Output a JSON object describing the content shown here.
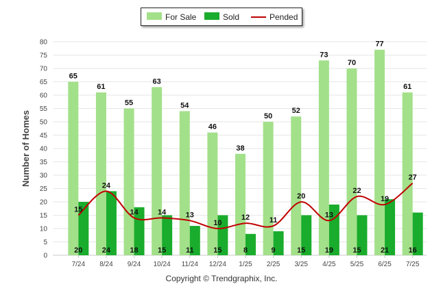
{
  "chart_data": {
    "type": "bar",
    "categories": [
      "7/24",
      "8/24",
      "9/24",
      "10/24",
      "11/24",
      "12/24",
      "1/25",
      "2/25",
      "3/25",
      "4/25",
      "5/25",
      "6/25",
      "7/25"
    ],
    "series": [
      {
        "name": "For Sale",
        "type": "bar",
        "color": "#a3e08a",
        "values": [
          65,
          61,
          55,
          63,
          54,
          46,
          38,
          50,
          52,
          73,
          70,
          77,
          61
        ]
      },
      {
        "name": "Sold",
        "type": "bar",
        "color": "#1aac2c",
        "values": [
          20,
          24,
          18,
          15,
          11,
          15,
          8,
          9,
          15,
          19,
          15,
          21,
          16
        ]
      },
      {
        "name": "Pended",
        "type": "line",
        "color": "#c00000",
        "values": [
          15,
          24,
          14,
          14,
          13,
          10,
          12,
          11,
          20,
          13,
          22,
          19,
          27
        ]
      }
    ],
    "xlabel": "",
    "ylabel": "Number of Homes",
    "ylim": [
      0,
      80
    ],
    "yticks": [
      0,
      5,
      10,
      15,
      20,
      25,
      30,
      35,
      40,
      45,
      50,
      55,
      60,
      65,
      70,
      75,
      80
    ],
    "grid": true,
    "legend_position": "top-center"
  },
  "footer": {
    "copyright": "Copyright © Trendgraphix, Inc."
  }
}
